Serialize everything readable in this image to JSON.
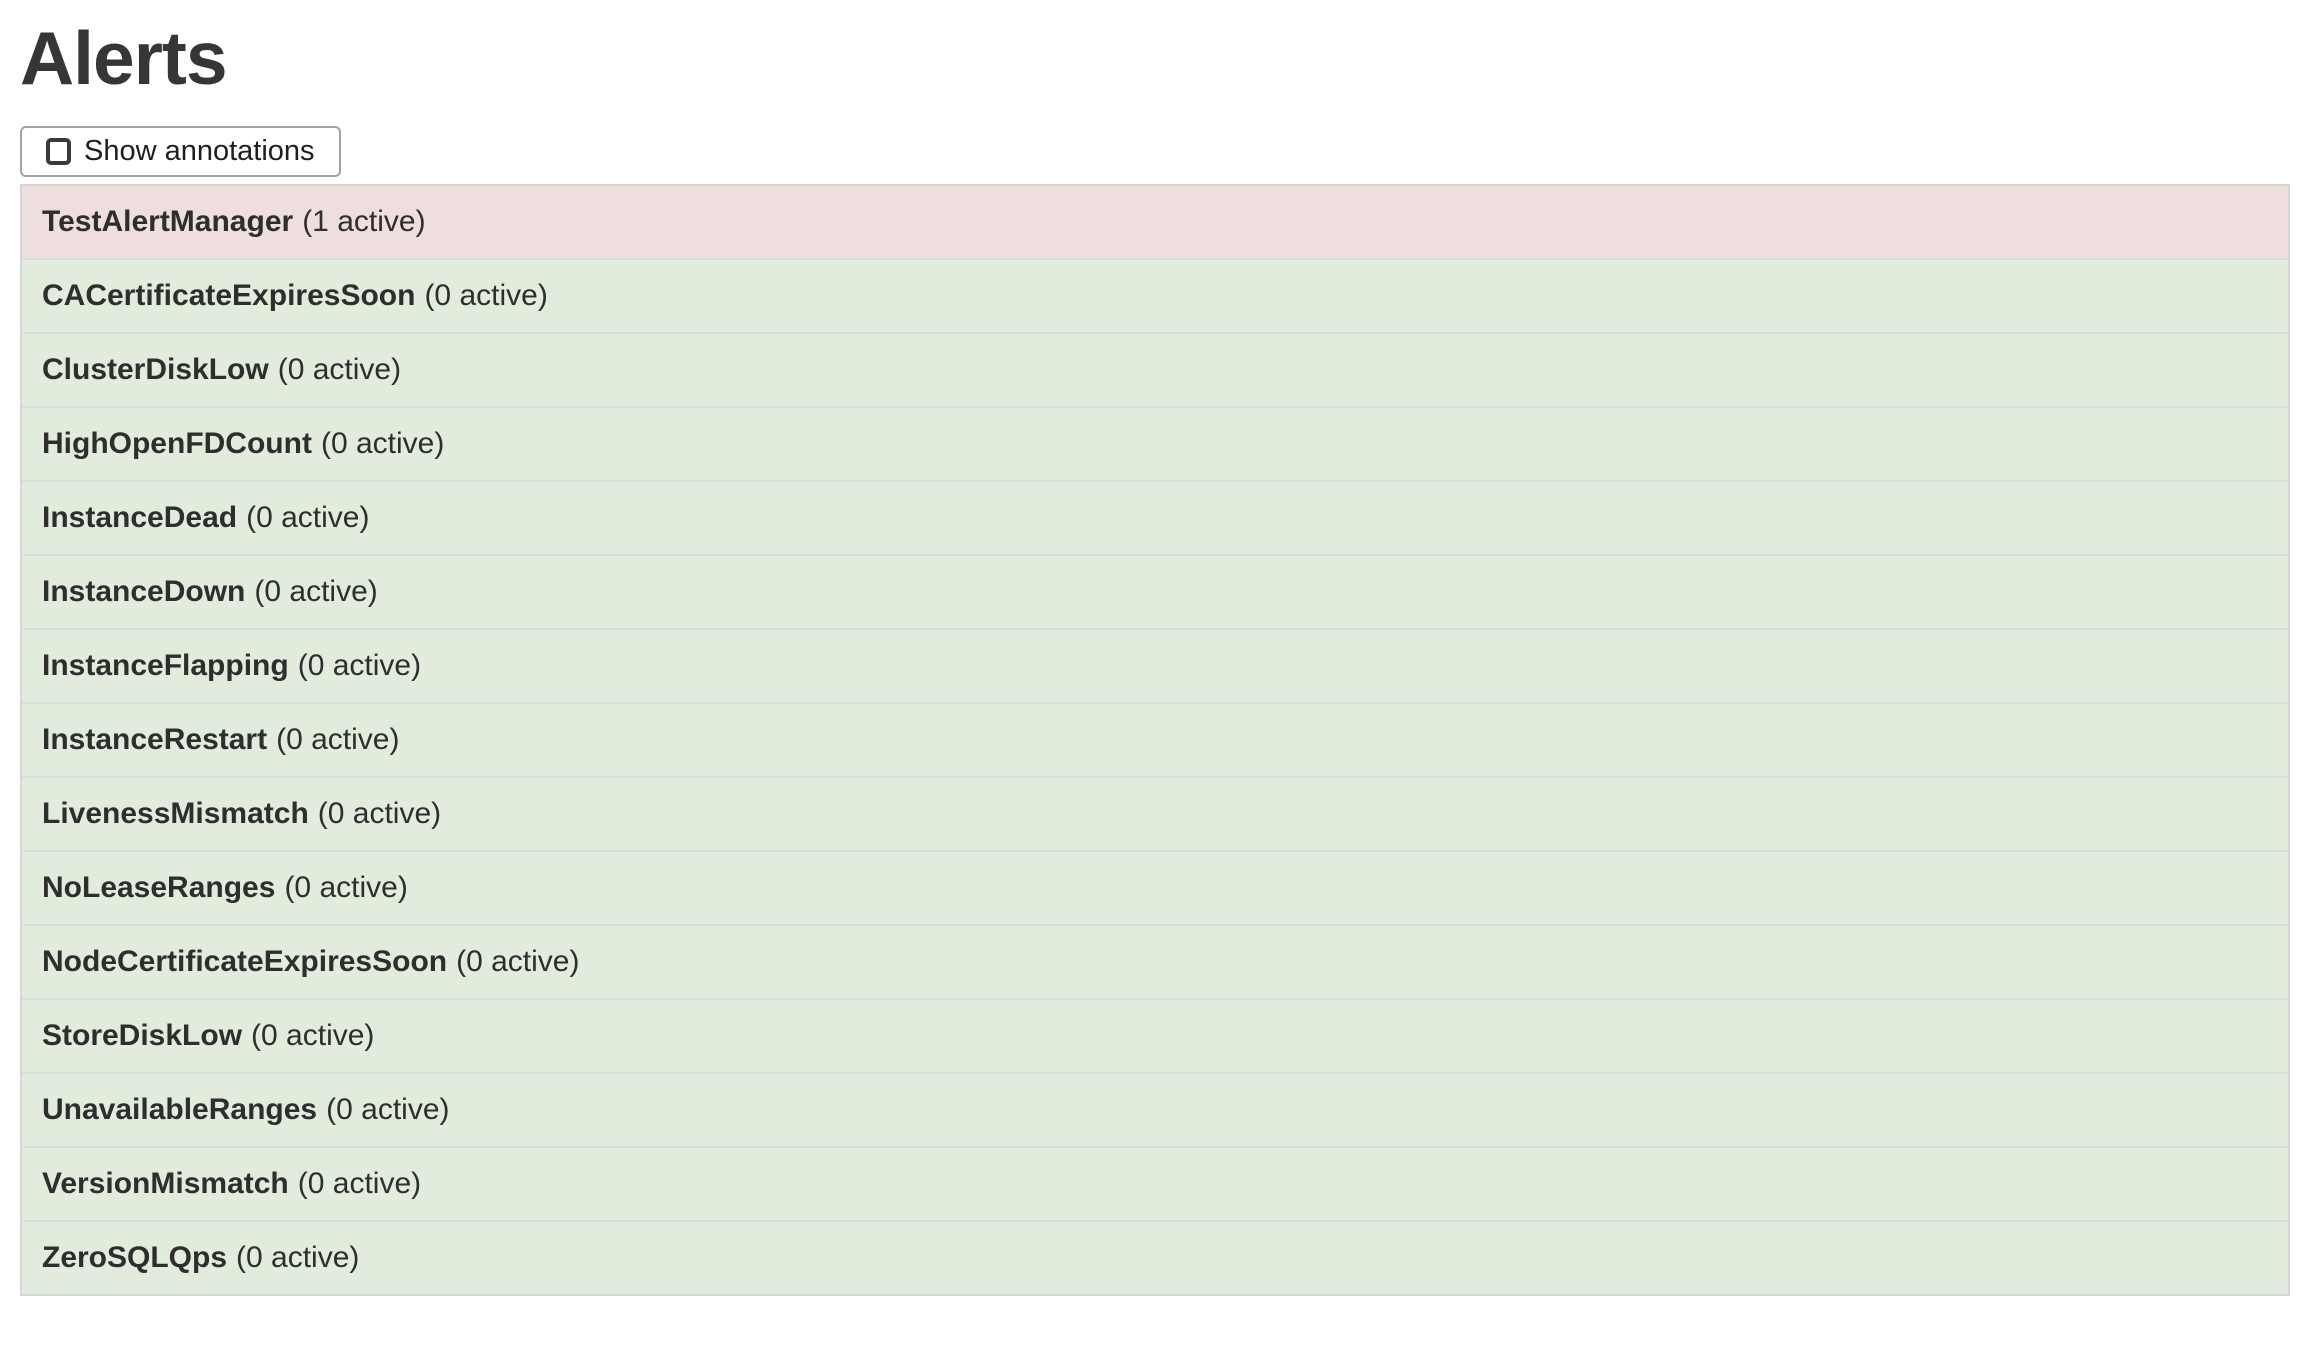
{
  "page": {
    "title": "Alerts"
  },
  "toolbar": {
    "show_annotations": {
      "label": "Show annotations",
      "checked": false
    }
  },
  "alerts": [
    {
      "name": "TestAlertManager",
      "active": 1,
      "count_label": "(1 active)",
      "state": "firing"
    },
    {
      "name": "CACertificateExpiresSoon",
      "active": 0,
      "count_label": "(0 active)",
      "state": "inactive"
    },
    {
      "name": "ClusterDiskLow",
      "active": 0,
      "count_label": "(0 active)",
      "state": "inactive"
    },
    {
      "name": "HighOpenFDCount",
      "active": 0,
      "count_label": "(0 active)",
      "state": "inactive"
    },
    {
      "name": "InstanceDead",
      "active": 0,
      "count_label": "(0 active)",
      "state": "inactive"
    },
    {
      "name": "InstanceDown",
      "active": 0,
      "count_label": "(0 active)",
      "state": "inactive"
    },
    {
      "name": "InstanceFlapping",
      "active": 0,
      "count_label": "(0 active)",
      "state": "inactive"
    },
    {
      "name": "InstanceRestart",
      "active": 0,
      "count_label": "(0 active)",
      "state": "inactive"
    },
    {
      "name": "LivenessMismatch",
      "active": 0,
      "count_label": "(0 active)",
      "state": "inactive"
    },
    {
      "name": "NoLeaseRanges",
      "active": 0,
      "count_label": "(0 active)",
      "state": "inactive"
    },
    {
      "name": "NodeCertificateExpiresSoon",
      "active": 0,
      "count_label": "(0 active)",
      "state": "inactive"
    },
    {
      "name": "StoreDiskLow",
      "active": 0,
      "count_label": "(0 active)",
      "state": "inactive"
    },
    {
      "name": "UnavailableRanges",
      "active": 0,
      "count_label": "(0 active)",
      "state": "inactive"
    },
    {
      "name": "VersionMismatch",
      "active": 0,
      "count_label": "(0 active)",
      "state": "inactive"
    },
    {
      "name": "ZeroSQLQps",
      "active": 0,
      "count_label": "(0 active)",
      "state": "inactive"
    }
  ],
  "colors": {
    "firing_row_bg": "#efdede",
    "inactive_row_bg": "#e2ecdd",
    "table_border": "#d6d6d6",
    "row_divider": "#dcdcdc",
    "text": "#2e2e2e"
  }
}
